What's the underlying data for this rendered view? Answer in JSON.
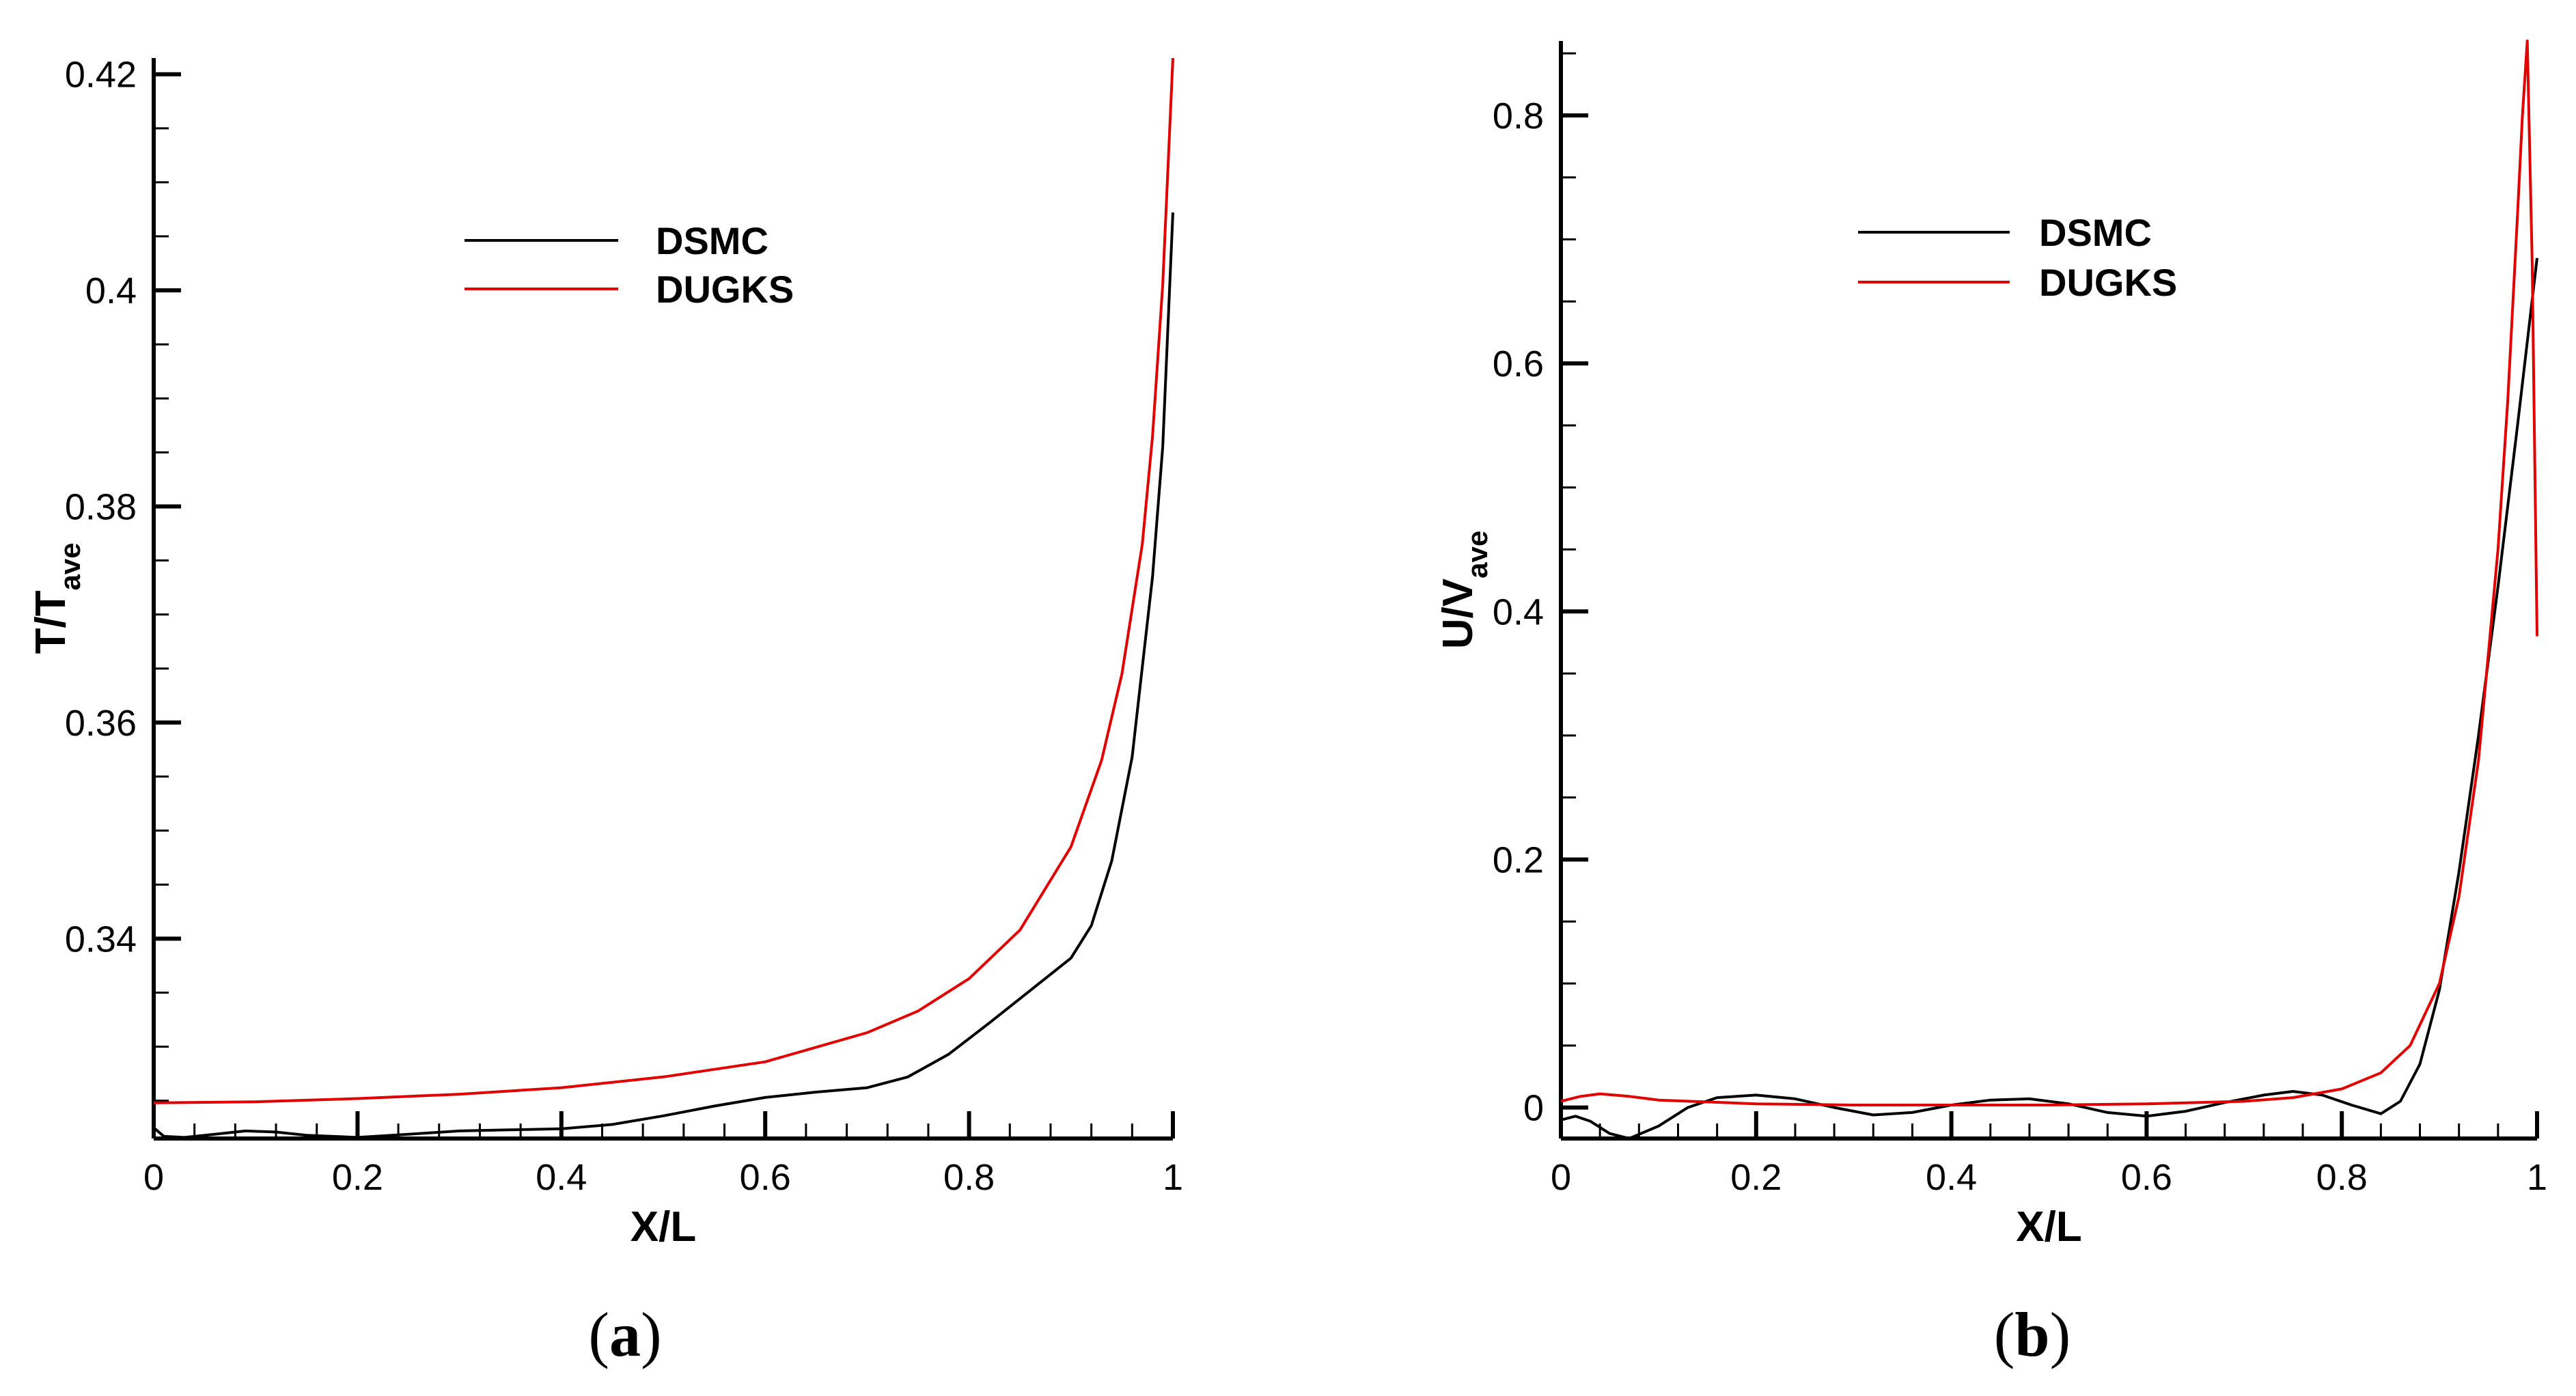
{
  "colors": {
    "dsmc": "#000000",
    "dugks": "#e00000",
    "axis": "#000000",
    "background": "#ffffff"
  },
  "chart_data": [
    {
      "type": "line",
      "panel_label": "a",
      "xlabel": "X/L",
      "ylabel_main": "T/T",
      "ylabel_sub": "ave",
      "xlim": [
        0,
        1
      ],
      "ylim": [
        0.3215,
        0.4215
      ],
      "x_ticks": [
        "0",
        "0.2",
        "0.4",
        "0.6",
        "0.8",
        "1"
      ],
      "x_tick_values": [
        0,
        0.2,
        0.4,
        0.6,
        0.8,
        1
      ],
      "y_ticks": [
        "0.34",
        "0.36",
        "0.38",
        "0.4",
        "0.42"
      ],
      "y_tick_values": [
        0.34,
        0.36,
        0.38,
        0.4,
        0.42
      ],
      "legend_position": "top-center",
      "series": [
        {
          "name": "DSMC",
          "color": "#000000",
          "points": [
            [
              0,
              0.3225
            ],
            [
              0.01,
              0.3217
            ],
            [
              0.03,
              0.3216
            ],
            [
              0.06,
              0.3219
            ],
            [
              0.09,
              0.3222
            ],
            [
              0.12,
              0.3221
            ],
            [
              0.15,
              0.3218
            ],
            [
              0.2,
              0.3216
            ],
            [
              0.25,
              0.3219
            ],
            [
              0.3,
              0.3222
            ],
            [
              0.35,
              0.3223
            ],
            [
              0.4,
              0.3224
            ],
            [
              0.45,
              0.3228
            ],
            [
              0.5,
              0.3236
            ],
            [
              0.55,
              0.3245
            ],
            [
              0.6,
              0.3253
            ],
            [
              0.65,
              0.3258
            ],
            [
              0.7,
              0.3262
            ],
            [
              0.74,
              0.3272
            ],
            [
              0.78,
              0.3293
            ],
            [
              0.82,
              0.3322
            ],
            [
              0.86,
              0.3352
            ],
            [
              0.9,
              0.3382
            ],
            [
              0.92,
              0.3412
            ],
            [
              0.94,
              0.3472
            ],
            [
              0.96,
              0.3568
            ],
            [
              0.98,
              0.3735
            ],
            [
              0.99,
              0.3855
            ],
            [
              1.0,
              0.4072
            ]
          ]
        },
        {
          "name": "DUGKS",
          "color": "#e00000",
          "points": [
            [
              0,
              0.3248
            ],
            [
              0.1,
              0.3249
            ],
            [
              0.2,
              0.3252
            ],
            [
              0.3,
              0.3256
            ],
            [
              0.4,
              0.3262
            ],
            [
              0.5,
              0.3272
            ],
            [
              0.6,
              0.3286
            ],
            [
              0.7,
              0.3313
            ],
            [
              0.75,
              0.3333
            ],
            [
              0.8,
              0.3363
            ],
            [
              0.85,
              0.3408
            ],
            [
              0.9,
              0.3485
            ],
            [
              0.93,
              0.3565
            ],
            [
              0.95,
              0.3645
            ],
            [
              0.97,
              0.3765
            ],
            [
              0.98,
              0.3865
            ],
            [
              0.99,
              0.4005
            ],
            [
              1.0,
              0.4215
            ]
          ]
        }
      ]
    },
    {
      "type": "line",
      "panel_label": "b",
      "xlabel": "X/L",
      "ylabel_main": "U/V",
      "ylabel_sub": "ave",
      "xlim": [
        0,
        1
      ],
      "ylim": [
        -0.025,
        0.86
      ],
      "x_ticks": [
        "0",
        "0.2",
        "0.4",
        "0.6",
        "0.8",
        "1"
      ],
      "x_tick_values": [
        0,
        0.2,
        0.4,
        0.6,
        0.8,
        1
      ],
      "y_ticks": [
        "0",
        "0.2",
        "0.4",
        "0.6",
        "0.8"
      ],
      "y_tick_values": [
        0,
        0.2,
        0.4,
        0.6,
        0.8
      ],
      "legend_position": "top-center",
      "series": [
        {
          "name": "DSMC",
          "color": "#000000",
          "points": [
            [
              0,
              -0.01
            ],
            [
              0.015,
              -0.007
            ],
            [
              0.03,
              -0.011
            ],
            [
              0.05,
              -0.021
            ],
            [
              0.07,
              -0.025
            ],
            [
              0.1,
              -0.015
            ],
            [
              0.13,
              0.0
            ],
            [
              0.16,
              0.008
            ],
            [
              0.2,
              0.01
            ],
            [
              0.24,
              0.007
            ],
            [
              0.28,
              0.0
            ],
            [
              0.32,
              -0.006
            ],
            [
              0.36,
              -0.004
            ],
            [
              0.4,
              0.002
            ],
            [
              0.44,
              0.006
            ],
            [
              0.48,
              0.007
            ],
            [
              0.52,
              0.003
            ],
            [
              0.56,
              -0.004
            ],
            [
              0.6,
              -0.007
            ],
            [
              0.64,
              -0.003
            ],
            [
              0.68,
              0.004
            ],
            [
              0.72,
              0.01
            ],
            [
              0.75,
              0.013
            ],
            [
              0.78,
              0.01
            ],
            [
              0.81,
              0.002
            ],
            [
              0.84,
              -0.005
            ],
            [
              0.86,
              0.005
            ],
            [
              0.88,
              0.035
            ],
            [
              0.9,
              0.095
            ],
            [
              0.92,
              0.19
            ],
            [
              0.94,
              0.3
            ],
            [
              0.96,
              0.42
            ],
            [
              0.98,
              0.55
            ],
            [
              1.0,
              0.685
            ]
          ]
        },
        {
          "name": "DUGKS",
          "color": "#e00000",
          "points": [
            [
              0,
              0.005
            ],
            [
              0.02,
              0.009
            ],
            [
              0.04,
              0.011
            ],
            [
              0.07,
              0.009
            ],
            [
              0.1,
              0.006
            ],
            [
              0.2,
              0.003
            ],
            [
              0.3,
              0.002
            ],
            [
              0.4,
              0.002
            ],
            [
              0.5,
              0.002
            ],
            [
              0.6,
              0.003
            ],
            [
              0.7,
              0.005
            ],
            [
              0.75,
              0.008
            ],
            [
              0.8,
              0.015
            ],
            [
              0.84,
              0.028
            ],
            [
              0.87,
              0.05
            ],
            [
              0.9,
              0.1
            ],
            [
              0.92,
              0.17
            ],
            [
              0.94,
              0.28
            ],
            [
              0.96,
              0.45
            ],
            [
              0.97,
              0.57
            ],
            [
              0.98,
              0.72
            ],
            [
              0.985,
              0.8
            ],
            [
              0.99,
              0.86
            ],
            [
              0.995,
              0.68
            ],
            [
              1.0,
              0.38
            ]
          ]
        }
      ]
    }
  ]
}
